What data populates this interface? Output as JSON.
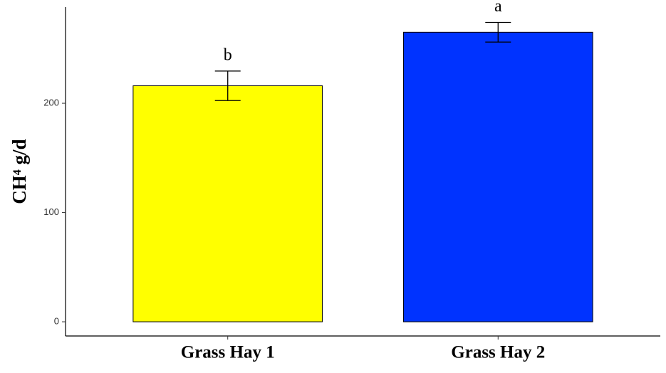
{
  "chart_data": {
    "type": "bar",
    "y_label": "CH⁴ g/d",
    "categories": [
      "Grass Hay 1",
      "Grass Hay 2"
    ],
    "values": [
      216,
      265
    ],
    "errors": [
      13.5,
      9
    ],
    "colors": [
      "#ffff00",
      "#0033ff"
    ],
    "letters": [
      "b",
      "a"
    ],
    "ylim": [
      -13,
      288
    ],
    "yticks": [
      0,
      100,
      200
    ],
    "grid": false
  }
}
